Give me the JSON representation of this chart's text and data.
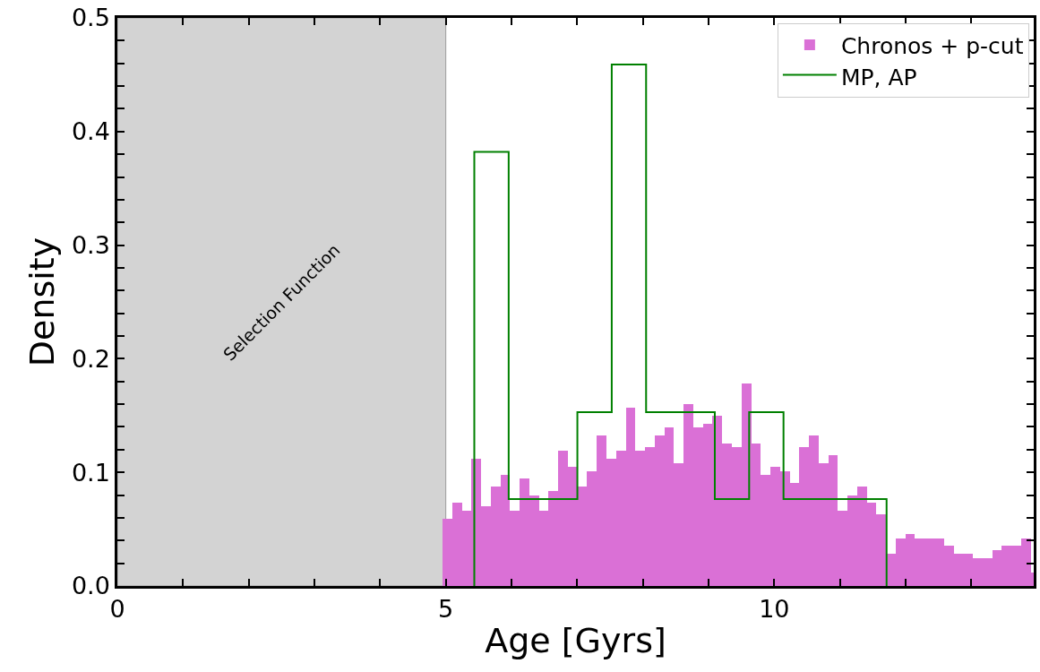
{
  "chart_data": {
    "type": "histogram",
    "xlabel": "Age [Gyrs]",
    "ylabel": "Density",
    "xlim": [
      0,
      13.95
    ],
    "ylim": [
      0,
      0.5
    ],
    "xticks": [
      0,
      {
        "value": 1,
        "label": null
      },
      {
        "value": 2,
        "label": null
      },
      {
        "value": 3,
        "label": null
      },
      {
        "value": 4,
        "label": null
      },
      5,
      {
        "value": 6,
        "label": null
      },
      {
        "value": 7,
        "label": null
      },
      {
        "value": 8,
        "label": null
      },
      {
        "value": 9,
        "label": null
      },
      10,
      {
        "value": 11,
        "label": null
      },
      {
        "value": 12,
        "label": null
      },
      {
        "value": 13,
        "label": null
      }
    ],
    "yticks": [
      {
        "value": 0,
        "label": "0.0"
      },
      {
        "value": 0.02,
        "label": null
      },
      {
        "value": 0.04,
        "label": null
      },
      {
        "value": 0.06,
        "label": null
      },
      {
        "value": 0.08,
        "label": null
      },
      {
        "value": 0.1,
        "label": "0.1"
      },
      {
        "value": 0.12,
        "label": null
      },
      {
        "value": 0.14,
        "label": null
      },
      {
        "value": 0.16,
        "label": null
      },
      {
        "value": 0.18,
        "label": null
      },
      {
        "value": 0.2,
        "label": "0.2"
      },
      {
        "value": 0.22,
        "label": null
      },
      {
        "value": 0.24,
        "label": null
      },
      {
        "value": 0.26,
        "label": null
      },
      {
        "value": 0.28,
        "label": null
      },
      {
        "value": 0.3,
        "label": "0.3"
      },
      {
        "value": 0.32,
        "label": null
      },
      {
        "value": 0.34,
        "label": null
      },
      {
        "value": 0.36,
        "label": null
      },
      {
        "value": 0.38,
        "label": null
      },
      {
        "value": 0.4,
        "label": "0.4"
      },
      {
        "value": 0.42,
        "label": null
      },
      {
        "value": 0.44,
        "label": null
      },
      {
        "value": 0.46,
        "label": null
      },
      {
        "value": 0.48,
        "label": null
      },
      {
        "value": 0.5,
        "label": "0.5"
      }
    ],
    "grid": false,
    "legend": "top right",
    "bands": [
      {
        "axis": "x",
        "from": 0,
        "to": 5,
        "label": "Selection Function",
        "color": "#d3d3d3"
      }
    ],
    "bins": [
      4.95,
      5.097,
      5.244,
      5.39,
      5.537,
      5.684,
      5.831,
      5.978,
      6.124,
      6.271,
      6.418,
      6.565,
      6.712,
      6.858,
      7.005,
      7.152,
      7.299,
      7.446,
      7.592,
      7.739,
      7.886,
      8.033,
      8.18,
      8.326,
      8.473,
      8.62,
      8.767,
      8.914,
      9.06,
      9.207,
      9.354,
      9.501,
      9.648,
      9.794,
      9.941,
      10.088,
      10.235,
      10.382,
      10.528,
      10.675,
      10.822,
      10.969,
      11.116,
      11.262,
      11.409,
      11.556,
      11.703,
      11.85,
      11.996,
      12.143,
      12.29,
      12.437,
      12.584,
      12.73,
      12.877,
      13.024,
      13.171,
      13.318,
      13.464,
      13.611,
      13.758,
      13.905,
      14.052
    ],
    "series": [
      {
        "name": "Chronos + p-cut",
        "color": "#da70d6",
        "values": [
          0.059,
          0.073,
          0.066,
          0.112,
          0.07,
          0.0875,
          0.098,
          0.066,
          0.0946,
          0.08,
          0.066,
          0.0836,
          0.119,
          0.105,
          0.0875,
          0.101,
          0.1325,
          0.112,
          0.119,
          0.157,
          0.119,
          0.122,
          0.1325,
          0.1396,
          0.108,
          0.16,
          0.1396,
          0.1427,
          0.15,
          0.1254,
          0.122,
          0.178,
          0.1254,
          0.098,
          0.105,
          0.101,
          0.0907,
          0.122,
          0.1325,
          0.108,
          0.115,
          0.066,
          0.08,
          0.0875,
          0.073,
          0.063,
          0.0284,
          0.0418,
          0.0457,
          0.0418,
          0.0418,
          0.0418,
          0.0355,
          0.0284,
          0.0284,
          0.0244,
          0.0244,
          0.0315,
          0.0355,
          0.0355,
          0.0418,
          0.012
        ]
      },
      {
        "name": "MP, AP",
        "type": "step",
        "color": "#008000",
        "x": [
          5.434,
          5.434,
          5.957,
          6.48,
          7.003,
          7.526,
          8.049,
          8.572,
          9.095,
          9.618,
          10.141,
          10.664,
          11.187,
          11.71
        ],
        "values": [
          0,
          0.382,
          0.0765,
          0.0765,
          0.153,
          0.459,
          0.153,
          0.153,
          0.0765,
          0.153,
          0.0765,
          0.0765,
          0.0765,
          0
        ]
      }
    ]
  }
}
